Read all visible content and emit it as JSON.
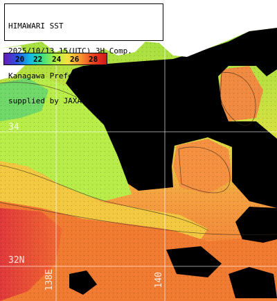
{
  "header": {
    "line1": "HIMAWARI SST",
    "line2": "2025/10/13 15(UTC) 3H Comp.",
    "line3": "Kanagawa Prefecture",
    "line4": "supplied by JAXA"
  },
  "colorbar": {
    "ticks": [
      "20",
      "22",
      "24",
      "26",
      "28"
    ],
    "gradient": [
      "#6a1ab5",
      "#2a50e0",
      "#10b8e8",
      "#40e080",
      "#b0f040",
      "#f8e040",
      "#f89030",
      "#e84020",
      "#d01818"
    ]
  },
  "grid_labels": {
    "lat_34": "34",
    "lat_32": "32N",
    "lon_138": "138E",
    "lon_140": "140"
  },
  "colors": {
    "land": "#ffffff",
    "cloud_mask": "#000000",
    "warm_sea": "#f07030",
    "cool_sea": "#a0f050",
    "grid": "#ffffff"
  }
}
